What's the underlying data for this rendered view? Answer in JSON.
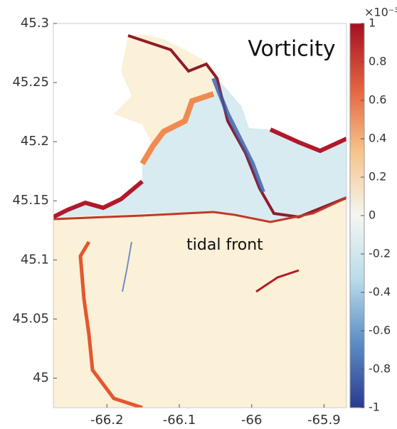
{
  "chart_data": {
    "type": "heatmap",
    "title": "Vorticity",
    "annotations": [
      "tidal front"
    ],
    "xlim": [
      -66.274,
      -65.869
    ],
    "xticks": [
      -66.2,
      -66.1,
      -66,
      -65.9
    ],
    "ylim": [
      44.975,
      45.3
    ],
    "yticks": [
      45,
      45.05,
      45.1,
      45.15,
      45.2,
      45.25,
      45.3
    ],
    "colorbar": {
      "clim": [
        -1,
        1
      ],
      "ticks": [
        -1,
        -0.8,
        -0.6,
        -0.4,
        -0.2,
        0,
        0.2,
        0.4,
        0.6,
        0.8,
        1
      ],
      "exponent_label": "×10⁻³",
      "colors": [
        "#2b3a8f",
        "#5b8cc4",
        "#b9dcea",
        "#f4f6f1",
        "#f6c48a",
        "#e2623f",
        "#a50f23"
      ]
    }
  }
}
